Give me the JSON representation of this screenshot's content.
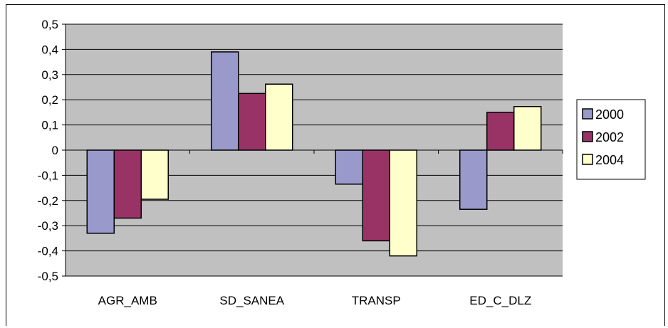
{
  "chart_data": {
    "type": "bar",
    "categories": [
      "AGR_AMB",
      "SD_SANEA",
      "TRANSP",
      "ED_C_DLZ"
    ],
    "series": [
      {
        "name": "2000",
        "values": [
          -0.33,
          0.39,
          -0.135,
          -0.235
        ],
        "color": "#9999cc"
      },
      {
        "name": "2002",
        "values": [
          -0.27,
          0.225,
          -0.36,
          0.15
        ],
        "color": "#993366"
      },
      {
        "name": "2004",
        "values": [
          -0.195,
          0.262,
          -0.42,
          0.173
        ],
        "color": "#ffffcc"
      }
    ],
    "ylim": [
      -0.5,
      0.5
    ],
    "ytick_values": [
      0.5,
      0.4,
      0.3,
      0.2,
      0.1,
      0,
      -0.1,
      -0.2,
      -0.3,
      -0.4,
      -0.5
    ],
    "ytick_labels": [
      "0,5",
      "0,4",
      "0,3",
      "0,2",
      "0,1",
      "0",
      "-0,1",
      "-0,2",
      "-0,3",
      "-0,4",
      "-0,5"
    ],
    "plot_background": "#c0c0c0",
    "grid": true,
    "legend_position": "right",
    "title": "",
    "xlabel": "",
    "ylabel": ""
  }
}
